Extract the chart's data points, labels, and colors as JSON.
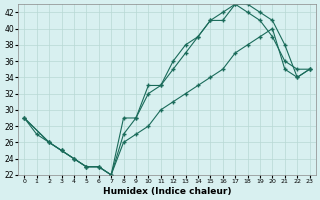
{
  "xlabel": "Humidex (Indice chaleur)",
  "ylabel": "",
  "xlim": [
    -0.5,
    23.5
  ],
  "ylim": [
    22,
    43
  ],
  "yticks": [
    22,
    24,
    26,
    28,
    30,
    32,
    34,
    36,
    38,
    40,
    42
  ],
  "xticks": [
    0,
    1,
    2,
    3,
    4,
    5,
    6,
    7,
    8,
    9,
    10,
    11,
    12,
    13,
    14,
    15,
    16,
    17,
    18,
    19,
    20,
    21,
    22,
    23
  ],
  "background_color": "#d8f0f0",
  "line_color": "#1a6b5a",
  "grid_color": "#b8d8d4",
  "line1_x": [
    0,
    1,
    2,
    3,
    4,
    5,
    6,
    7,
    8,
    9,
    10,
    11,
    12,
    13,
    14,
    15,
    16,
    17,
    18,
    19,
    20,
    21,
    22,
    23
  ],
  "line1_y": [
    29,
    27,
    26,
    25,
    24,
    23,
    23,
    22,
    27,
    29,
    32,
    33,
    35,
    37,
    39,
    41,
    42,
    43,
    42,
    41,
    39,
    36,
    35,
    35
  ],
  "line2_x": [
    0,
    2,
    3,
    4,
    5,
    6,
    7,
    8,
    9,
    10,
    11,
    12,
    13,
    14,
    15,
    16,
    17,
    18,
    19,
    20,
    21,
    22,
    23
  ],
  "line2_y": [
    29,
    26,
    25,
    24,
    23,
    23,
    22,
    29,
    29,
    33,
    33,
    36,
    38,
    39,
    41,
    41,
    43,
    43,
    42,
    41,
    38,
    34,
    35
  ],
  "line3_x": [
    0,
    2,
    3,
    4,
    5,
    6,
    7,
    8,
    9,
    10,
    11,
    12,
    13,
    14,
    15,
    16,
    17,
    18,
    19,
    20,
    21,
    22,
    23
  ],
  "line3_y": [
    29,
    26,
    25,
    24,
    23,
    23,
    22,
    26,
    27,
    28,
    30,
    31,
    32,
    33,
    34,
    35,
    37,
    38,
    39,
    40,
    35,
    34,
    35
  ]
}
